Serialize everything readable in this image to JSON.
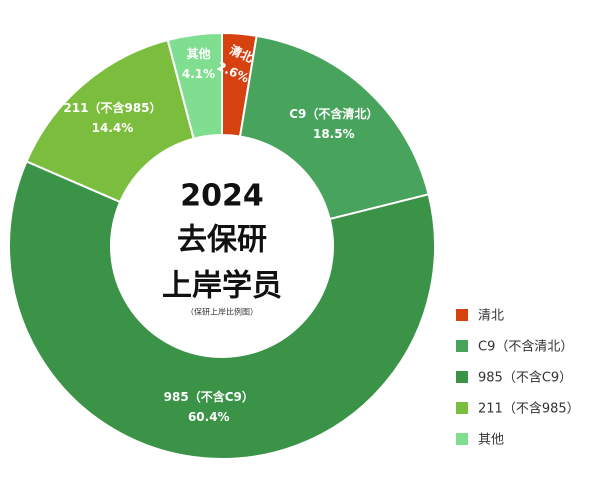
{
  "chart_data": {
    "type": "pie",
    "center_title_lines": [
      "2024",
      "去保研",
      "上岸学员"
    ],
    "center_note": "（保研上岸比例图）",
    "slices": [
      {
        "name": "清北",
        "value": 2.6,
        "label_lines": [
          "清北",
          "2.6%"
        ],
        "color": "#D64110"
      },
      {
        "name": "C9（不含清北）",
        "value": 18.5,
        "label_lines": [
          "C9（不含清北）",
          "18.5%"
        ],
        "color": "#48A45C"
      },
      {
        "name": "985（不含C9）",
        "value": 60.4,
        "label_lines": [
          "985（不含C9）",
          "60.4%"
        ],
        "color": "#3A9346"
      },
      {
        "name": "211（不含985）",
        "value": 14.4,
        "label_lines": [
          "211（不含985）",
          "14.4%"
        ],
        "color": "#7BBE3E"
      },
      {
        "name": "其他",
        "value": 4.1,
        "label_lines": [
          "其他",
          "4.1%"
        ],
        "color": "#80DE90"
      }
    ],
    "legend": {
      "position": "right",
      "entries": [
        "清北",
        "C9（不含清北）",
        "985（不含C9）",
        "211（不含985）",
        "其他"
      ]
    }
  }
}
